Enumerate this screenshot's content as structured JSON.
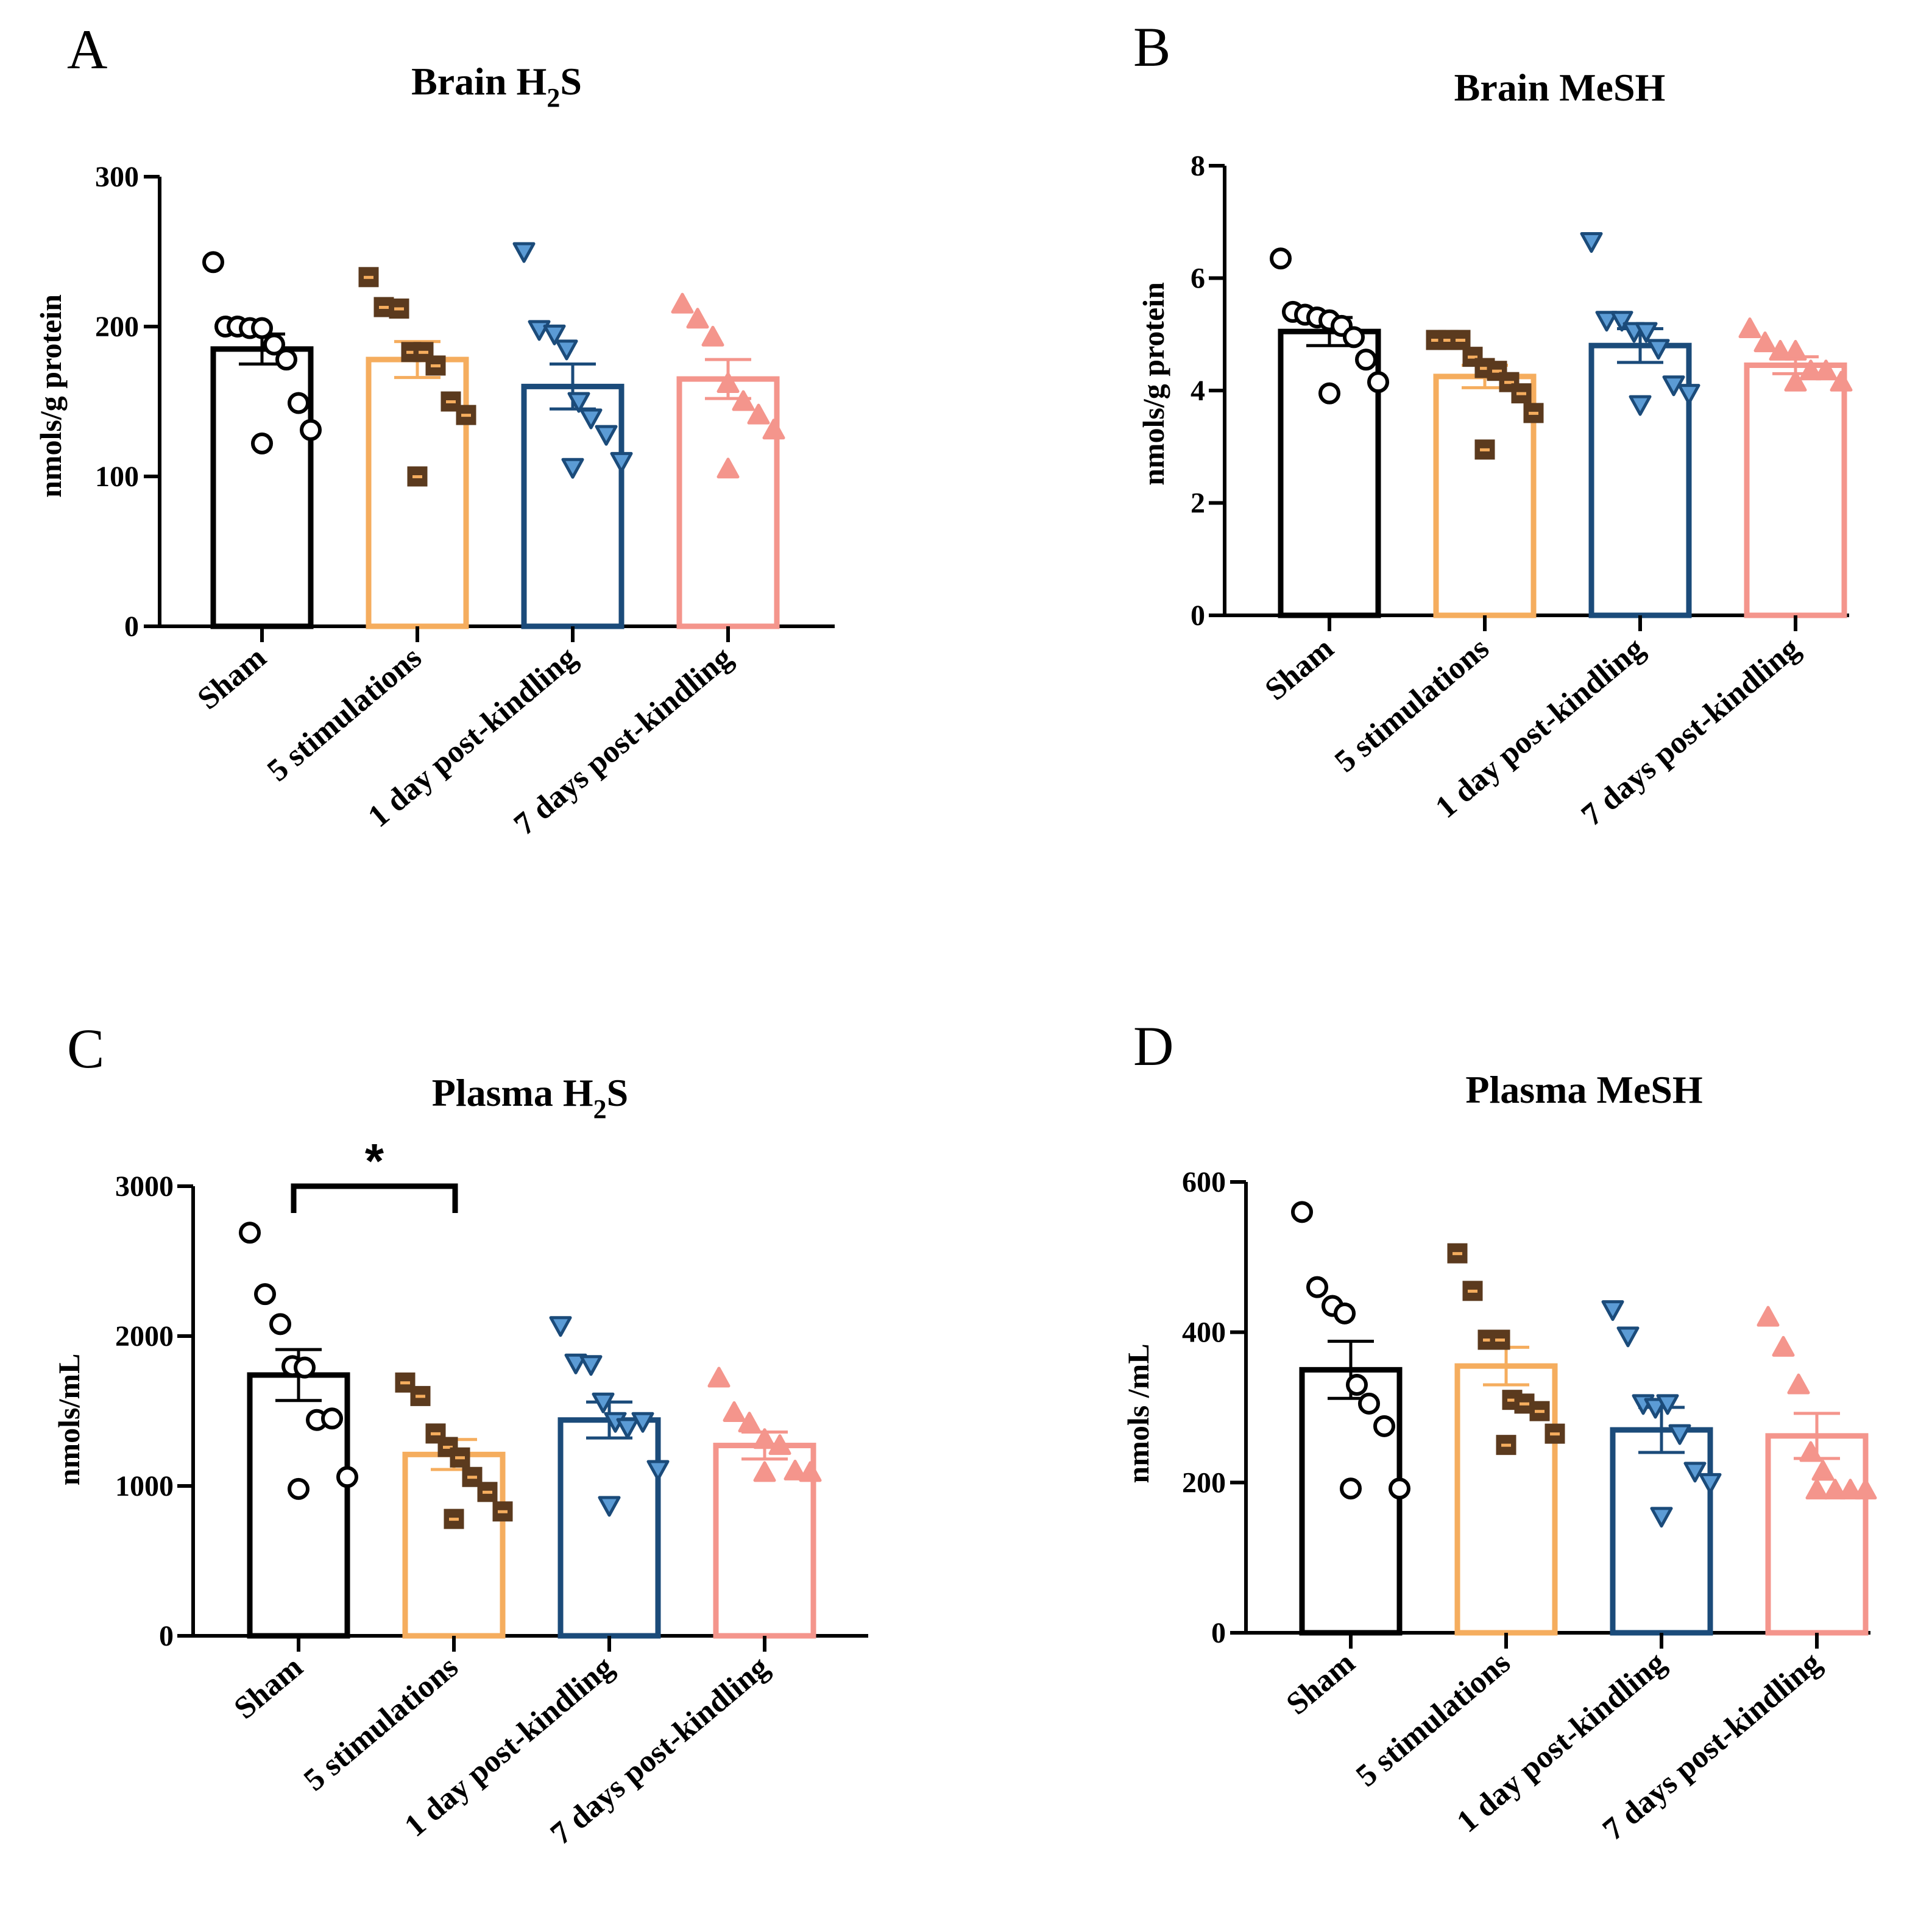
{
  "colors": {
    "sham": "#000000",
    "stim": "#f5ad5e",
    "day1": "#1b4b7a",
    "day7": "#f4958c",
    "square_fill": "#5b3a1e",
    "square_mark": "#f5ad5e",
    "tri_down_fill": "#5b9bd5",
    "tri_up_fill": "#f4958c",
    "axis": "#000000"
  },
  "chart_data": [
    {
      "id": "A",
      "type": "bar",
      "panel_letter": "A",
      "title": "Brain H",
      "title_sub": "2",
      "title_tail": "S",
      "ylabel": "nmols/g protein",
      "ylim": [
        0,
        300
      ],
      "yticks": [
        0,
        100,
        200,
        300
      ],
      "categories": [
        "Sham",
        "5 stimulations",
        "1 day post-kindling",
        "7 days post-kindling"
      ],
      "means": [
        185,
        178,
        160,
        165
      ],
      "sem": [
        10,
        12,
        15,
        13
      ],
      "points": [
        [
          243,
          200,
          200,
          199,
          199,
          188,
          178,
          149,
          131,
          122
        ],
        [
          233,
          213,
          212,
          183,
          183,
          174,
          150,
          141,
          100
        ],
        [
          250,
          198,
          195,
          185,
          150,
          139,
          128,
          110,
          106
        ],
        [
          215,
          205,
          193,
          162,
          150,
          141,
          131,
          105
        ]
      ],
      "significance": null
    },
    {
      "id": "B",
      "type": "bar",
      "panel_letter": "B",
      "title": "Brain MeSH",
      "title_sub": "",
      "title_tail": "",
      "ylabel": "nmols/g protein",
      "ylim": [
        0,
        8
      ],
      "yticks": [
        0,
        2,
        4,
        6,
        8
      ],
      "categories": [
        "Sham",
        "5 stimulations",
        "1 day post-kindling",
        "7 days post-kindling"
      ],
      "means": [
        5.05,
        4.25,
        4.8,
        4.45
      ],
      "sem": [
        0.25,
        0.2,
        0.3,
        0.15
      ],
      "points": [
        [
          6.35,
          5.4,
          5.35,
          5.3,
          5.25,
          5.15,
          4.95,
          4.55,
          4.15,
          3.95
        ],
        [
          4.9,
          4.9,
          4.9,
          4.6,
          4.4,
          4.35,
          4.15,
          3.95,
          3.6,
          2.95
        ],
        [
          6.65,
          5.25,
          5.25,
          5.05,
          5.05,
          4.75,
          4.1,
          3.95,
          3.75
        ],
        [
          5.1,
          4.85,
          4.7,
          4.7,
          4.35,
          4.35,
          4.15,
          4.15
        ]
      ],
      "significance": null
    },
    {
      "id": "C",
      "type": "bar",
      "panel_letter": "C",
      "title": "Plasma H",
      "title_sub": "2",
      "title_tail": "S",
      "ylabel": "nmols/mL",
      "ylim": [
        0,
        3000
      ],
      "yticks": [
        0,
        1000,
        2000,
        3000
      ],
      "categories": [
        "Sham",
        "5 stimulations",
        "1 day post-kindling",
        "7 days post-kindling"
      ],
      "means": [
        1740,
        1210,
        1440,
        1270
      ],
      "sem": [
        170,
        100,
        120,
        90
      ],
      "points": [
        [
          2690,
          2280,
          2080,
          1800,
          1790,
          1440,
          1450,
          1060,
          980
        ],
        [
          1690,
          1600,
          1350,
          1260,
          1190,
          1060,
          960,
          830,
          780
        ],
        [
          2070,
          1820,
          1810,
          1560,
          1430,
          1390,
          1430,
          1110,
          870
        ],
        [
          1720,
          1490,
          1420,
          1310,
          1270,
          1100,
          1090,
          1090
        ]
      ],
      "significance": {
        "from": 0,
        "to": 1,
        "label": "*"
      }
    },
    {
      "id": "D",
      "type": "bar",
      "panel_letter": "D",
      "title": "Plasma MeSH",
      "title_sub": "",
      "title_tail": "",
      "ylabel": "nmols /mL",
      "ylim": [
        0,
        600
      ],
      "yticks": [
        0,
        200,
        400,
        600
      ],
      "categories": [
        "Sham",
        "5 stimulations",
        "1 day post-kindling",
        "7 days post-kindling"
      ],
      "means": [
        350,
        355,
        270,
        262
      ],
      "sem": [
        38,
        25,
        30,
        30
      ],
      "points": [
        [
          560,
          460,
          435,
          425,
          330,
          305,
          275,
          192,
          192
        ],
        [
          505,
          455,
          390,
          390,
          310,
          305,
          295,
          265,
          250
        ],
        [
          430,
          395,
          305,
          300,
          305,
          265,
          215,
          200,
          155
        ],
        [
          420,
          380,
          330,
          240,
          215,
          190,
          190,
          190,
          190
        ]
      ],
      "significance": null
    }
  ]
}
